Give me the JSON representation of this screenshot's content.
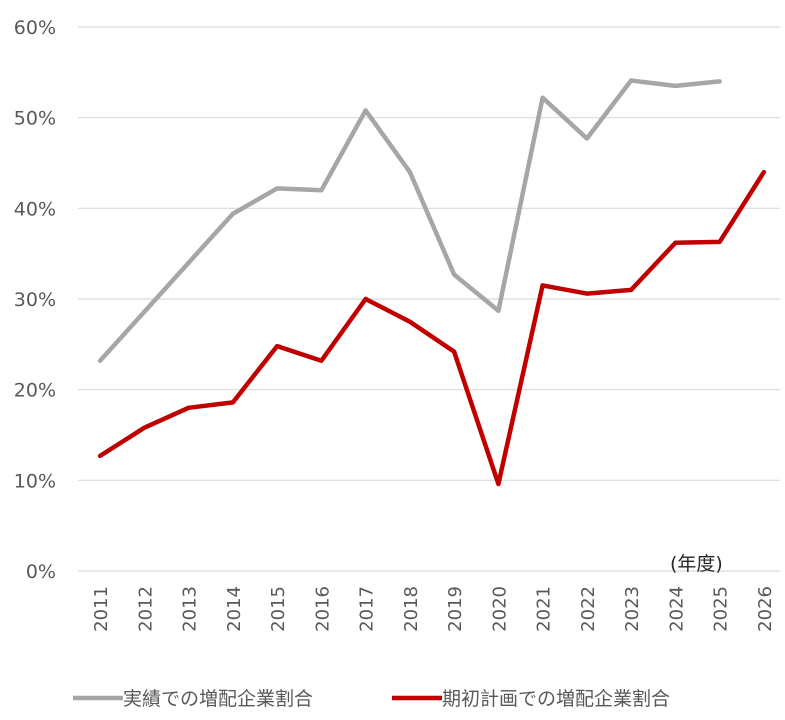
{
  "chart_data": {
    "type": "line",
    "x": [
      "2011",
      "2012",
      "2013",
      "2014",
      "2015",
      "2016",
      "2017",
      "2018",
      "2019",
      "2020",
      "2021",
      "2022",
      "2023",
      "2024",
      "2025",
      "2026"
    ],
    "series": [
      {
        "name": "実績での増配企業割合",
        "color": "#a6a6a6",
        "values": [
          23.2,
          28.6,
          34.0,
          39.4,
          42.2,
          42.0,
          50.8,
          44.0,
          32.7,
          28.7,
          52.2,
          47.7,
          54.1,
          53.5,
          54.0,
          null
        ]
      },
      {
        "name": "期初計画での増配企業割合",
        "color": "#c00000",
        "values": [
          12.7,
          15.8,
          18.0,
          18.6,
          24.8,
          23.2,
          30.0,
          27.5,
          24.2,
          9.6,
          31.5,
          30.6,
          31.0,
          36.2,
          36.3,
          44.0
        ]
      }
    ],
    "ylim": [
      0,
      60
    ],
    "yticks": [
      "0%",
      "10%",
      "20%",
      "30%",
      "40%",
      "50%",
      "60%"
    ],
    "unit_label": "(年度)",
    "grid": true,
    "legend_position": "bottom"
  }
}
